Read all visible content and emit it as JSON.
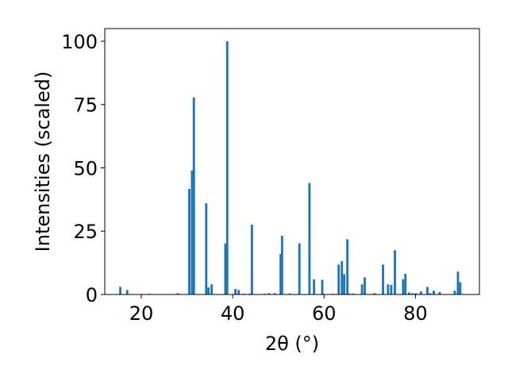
{
  "chart_data": {
    "type": "bar",
    "xlabel": "2θ (°)",
    "ylabel": "Intensities (scaled)",
    "xlim": [
      12,
      94
    ],
    "ylim": [
      0,
      105
    ],
    "xticks": [
      20,
      40,
      60,
      80
    ],
    "yticks": [
      0,
      25,
      50,
      75,
      100
    ],
    "bar_color": "#1f77b4",
    "bar_width": 0.5,
    "grid": false,
    "series": [
      {
        "x": [
          15.4,
          16.9,
          21.7,
          28.0,
          30.5,
          31.1,
          31.5,
          34.2,
          34.7,
          35.4,
          38.4,
          38.8,
          40.6,
          41.3,
          42.4,
          43.8,
          44.2,
          47.0,
          47.9,
          49.2,
          50.5,
          50.8,
          52.5,
          54.6,
          56.8,
          57.8,
          59.6,
          61.9,
          63.2,
          63.9,
          64.4,
          65.1,
          65.6,
          66.4,
          68.3,
          68.9,
          71.0,
          72.9,
          74.0,
          74.7,
          75.5,
          77.3,
          77.8,
          78.6,
          79.4,
          80.1,
          81.2,
          82.6,
          83.2,
          84.0,
          85.3,
          88.6,
          89.3,
          89.8
        ],
        "values": [
          3.0,
          1.8,
          0.3,
          0.5,
          41.7,
          49.0,
          77.8,
          36.0,
          2.8,
          4.0,
          20.2,
          100.0,
          2.2,
          1.8,
          0.3,
          0.3,
          27.6,
          0.3,
          0.5,
          0.5,
          16.0,
          23.2,
          0.4,
          20.2,
          44.0,
          6.0,
          5.8,
          0.3,
          11.8,
          13.2,
          8.0,
          21.8,
          0.3,
          0.4,
          4.0,
          6.8,
          0.5,
          11.8,
          4.0,
          3.8,
          17.5,
          6.0,
          8.2,
          0.8,
          0.5,
          0.5,
          1.2,
          3.0,
          0.5,
          1.5,
          1.0,
          1.5,
          9.0,
          4.8
        ]
      }
    ]
  }
}
